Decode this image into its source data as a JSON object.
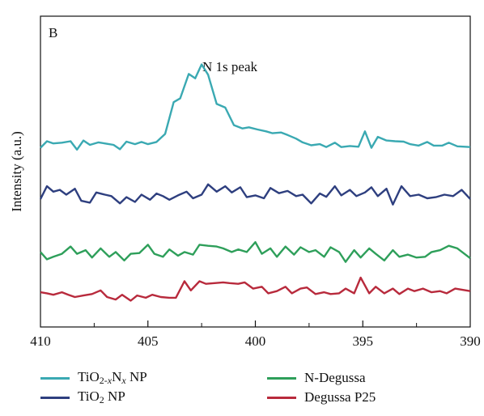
{
  "chart_data": {
    "type": "line",
    "panel_label": "B",
    "annotation": "N 1s peak",
    "xlabel": "",
    "ylabel": "Intensity (a.u.)",
    "x_reversed": true,
    "xlim": [
      410,
      390
    ],
    "x_ticks": [
      410,
      405,
      400,
      395,
      390
    ],
    "y_tick_labels": false,
    "grid": false,
    "legend_position": "bottom",
    "series": [
      {
        "name": "TiO2-xNx NP",
        "color": "#3aa9b2",
        "points": [
          [
            410,
            4.9
          ],
          [
            409.7,
            5.08
          ],
          [
            409.4,
            5.02
          ],
          [
            409.0,
            5.04
          ],
          [
            408.6,
            5.08
          ],
          [
            408.3,
            4.85
          ],
          [
            408.0,
            5.1
          ],
          [
            407.7,
            4.98
          ],
          [
            407.3,
            5.05
          ],
          [
            406.9,
            5.01
          ],
          [
            406.6,
            4.98
          ],
          [
            406.3,
            4.86
          ],
          [
            406.0,
            5.07
          ],
          [
            405.6,
            5.0
          ],
          [
            405.3,
            5.06
          ],
          [
            405.0,
            5.0
          ],
          [
            404.6,
            5.06
          ],
          [
            404.2,
            5.28
          ],
          [
            403.8,
            6.15
          ],
          [
            403.5,
            6.25
          ],
          [
            403.1,
            6.92
          ],
          [
            402.8,
            6.8
          ],
          [
            402.5,
            7.18
          ],
          [
            402.2,
            6.9
          ],
          [
            401.8,
            6.1
          ],
          [
            401.4,
            6.0
          ],
          [
            401.0,
            5.52
          ],
          [
            400.6,
            5.43
          ],
          [
            400.3,
            5.46
          ],
          [
            399.9,
            5.4
          ],
          [
            399.5,
            5.35
          ],
          [
            399.2,
            5.3
          ],
          [
            398.8,
            5.32
          ],
          [
            398.5,
            5.25
          ],
          [
            398.1,
            5.15
          ],
          [
            397.8,
            5.05
          ],
          [
            397.4,
            4.97
          ],
          [
            397.0,
            5.0
          ],
          [
            396.7,
            4.92
          ],
          [
            396.3,
            5.04
          ],
          [
            396.0,
            4.92
          ],
          [
            395.6,
            4.95
          ],
          [
            395.2,
            4.93
          ],
          [
            394.9,
            5.35
          ],
          [
            394.6,
            4.9
          ],
          [
            394.3,
            5.2
          ],
          [
            393.9,
            5.1
          ],
          [
            393.5,
            5.08
          ],
          [
            393.1,
            5.07
          ],
          [
            392.8,
            5.0
          ],
          [
            392.4,
            4.96
          ],
          [
            392.0,
            5.06
          ],
          [
            391.7,
            4.96
          ],
          [
            391.3,
            4.96
          ],
          [
            391.0,
            5.04
          ],
          [
            390.6,
            4.94
          ],
          [
            390,
            4.92
          ]
        ]
      },
      {
        "name": "TiO2 NP",
        "color": "#2e3f7f",
        "points": [
          [
            410,
            3.5
          ],
          [
            409.7,
            3.85
          ],
          [
            409.4,
            3.7
          ],
          [
            409.1,
            3.75
          ],
          [
            408.8,
            3.62
          ],
          [
            408.4,
            3.78
          ],
          [
            408.1,
            3.45
          ],
          [
            407.7,
            3.4
          ],
          [
            407.4,
            3.68
          ],
          [
            407.0,
            3.62
          ],
          [
            406.7,
            3.58
          ],
          [
            406.3,
            3.38
          ],
          [
            406.0,
            3.55
          ],
          [
            405.6,
            3.42
          ],
          [
            405.3,
            3.62
          ],
          [
            404.9,
            3.48
          ],
          [
            404.6,
            3.65
          ],
          [
            404.3,
            3.58
          ],
          [
            404.0,
            3.48
          ],
          [
            403.6,
            3.6
          ],
          [
            403.2,
            3.7
          ],
          [
            402.9,
            3.52
          ],
          [
            402.5,
            3.62
          ],
          [
            402.2,
            3.9
          ],
          [
            401.8,
            3.7
          ],
          [
            401.4,
            3.85
          ],
          [
            401.1,
            3.68
          ],
          [
            400.7,
            3.82
          ],
          [
            400.4,
            3.55
          ],
          [
            400.0,
            3.6
          ],
          [
            399.6,
            3.52
          ],
          [
            399.3,
            3.8
          ],
          [
            398.9,
            3.66
          ],
          [
            398.5,
            3.72
          ],
          [
            398.1,
            3.58
          ],
          [
            397.8,
            3.62
          ],
          [
            397.4,
            3.38
          ],
          [
            397.0,
            3.65
          ],
          [
            396.7,
            3.56
          ],
          [
            396.3,
            3.85
          ],
          [
            396.0,
            3.6
          ],
          [
            395.6,
            3.75
          ],
          [
            395.3,
            3.58
          ],
          [
            394.9,
            3.68
          ],
          [
            394.6,
            3.82
          ],
          [
            394.3,
            3.58
          ],
          [
            393.9,
            3.78
          ],
          [
            393.6,
            3.35
          ],
          [
            393.2,
            3.85
          ],
          [
            392.8,
            3.58
          ],
          [
            392.4,
            3.62
          ],
          [
            392.0,
            3.52
          ],
          [
            391.6,
            3.55
          ],
          [
            391.2,
            3.62
          ],
          [
            390.8,
            3.58
          ],
          [
            390.4,
            3.75
          ],
          [
            390,
            3.5
          ]
        ]
      },
      {
        "name": "N-Degussa",
        "color": "#2e9f5a",
        "points": [
          [
            410,
            2.05
          ],
          [
            409.7,
            1.85
          ],
          [
            409.4,
            1.92
          ],
          [
            409.0,
            2.0
          ],
          [
            408.6,
            2.2
          ],
          [
            408.3,
            2.0
          ],
          [
            407.9,
            2.1
          ],
          [
            407.6,
            1.9
          ],
          [
            407.2,
            2.15
          ],
          [
            406.8,
            1.92
          ],
          [
            406.5,
            2.05
          ],
          [
            406.1,
            1.82
          ],
          [
            405.8,
            2.0
          ],
          [
            405.4,
            2.02
          ],
          [
            405.0,
            2.25
          ],
          [
            404.7,
            2.0
          ],
          [
            404.3,
            1.92
          ],
          [
            404.0,
            2.12
          ],
          [
            403.6,
            1.95
          ],
          [
            403.3,
            2.05
          ],
          [
            402.9,
            1.98
          ],
          [
            402.6,
            2.25
          ],
          [
            402.2,
            2.22
          ],
          [
            401.8,
            2.2
          ],
          [
            401.5,
            2.15
          ],
          [
            401.1,
            2.05
          ],
          [
            400.8,
            2.12
          ],
          [
            400.4,
            2.05
          ],
          [
            400.0,
            2.32
          ],
          [
            399.7,
            2.0
          ],
          [
            399.3,
            2.15
          ],
          [
            399.0,
            1.92
          ],
          [
            398.6,
            2.2
          ],
          [
            398.2,
            1.98
          ],
          [
            397.9,
            2.18
          ],
          [
            397.5,
            2.05
          ],
          [
            397.2,
            2.1
          ],
          [
            396.8,
            1.92
          ],
          [
            396.5,
            2.18
          ],
          [
            396.1,
            2.05
          ],
          [
            395.8,
            1.78
          ],
          [
            395.4,
            2.1
          ],
          [
            395.1,
            1.9
          ],
          [
            394.7,
            2.15
          ],
          [
            394.4,
            2.0
          ],
          [
            394.0,
            1.82
          ],
          [
            393.6,
            2.1
          ],
          [
            393.3,
            1.92
          ],
          [
            392.9,
            1.98
          ],
          [
            392.5,
            1.9
          ],
          [
            392.1,
            1.92
          ],
          [
            391.8,
            2.05
          ],
          [
            391.4,
            2.1
          ],
          [
            391.0,
            2.22
          ],
          [
            390.6,
            2.15
          ],
          [
            390,
            1.88
          ]
        ]
      },
      {
        "name": "Degussa P25",
        "color": "#b82a3c",
        "points": [
          [
            410,
            0.95
          ],
          [
            409.7,
            0.92
          ],
          [
            409.4,
            0.88
          ],
          [
            409.0,
            0.95
          ],
          [
            408.7,
            0.88
          ],
          [
            408.4,
            0.82
          ],
          [
            408.0,
            0.86
          ],
          [
            407.6,
            0.9
          ],
          [
            407.2,
            1.0
          ],
          [
            406.9,
            0.82
          ],
          [
            406.5,
            0.75
          ],
          [
            406.2,
            0.88
          ],
          [
            405.8,
            0.72
          ],
          [
            405.5,
            0.86
          ],
          [
            405.1,
            0.8
          ],
          [
            404.8,
            0.88
          ],
          [
            404.4,
            0.82
          ],
          [
            404.0,
            0.8
          ],
          [
            403.7,
            0.8
          ],
          [
            403.3,
            1.25
          ],
          [
            403.0,
            1.0
          ],
          [
            402.6,
            1.25
          ],
          [
            402.3,
            1.18
          ],
          [
            401.9,
            1.2
          ],
          [
            401.5,
            1.22
          ],
          [
            401.2,
            1.2
          ],
          [
            400.8,
            1.18
          ],
          [
            400.5,
            1.22
          ],
          [
            400.1,
            1.05
          ],
          [
            399.7,
            1.1
          ],
          [
            399.4,
            0.92
          ],
          [
            399.0,
            0.98
          ],
          [
            398.6,
            1.1
          ],
          [
            398.3,
            0.92
          ],
          [
            397.9,
            1.05
          ],
          [
            397.6,
            1.08
          ],
          [
            397.2,
            0.9
          ],
          [
            396.8,
            0.95
          ],
          [
            396.5,
            0.9
          ],
          [
            396.1,
            0.92
          ],
          [
            395.8,
            1.05
          ],
          [
            395.4,
            0.92
          ],
          [
            395.1,
            1.35
          ],
          [
            394.7,
            0.92
          ],
          [
            394.4,
            1.1
          ],
          [
            394.0,
            0.92
          ],
          [
            393.6,
            1.05
          ],
          [
            393.3,
            0.9
          ],
          [
            392.9,
            1.05
          ],
          [
            392.6,
            0.98
          ],
          [
            392.2,
            1.05
          ],
          [
            391.8,
            0.95
          ],
          [
            391.4,
            0.98
          ],
          [
            391.1,
            0.92
          ],
          [
            390.7,
            1.05
          ],
          [
            390,
            0.98
          ]
        ]
      }
    ],
    "legend": [
      {
        "series": 0,
        "parts": [
          {
            "t": "TiO"
          },
          {
            "t": "2-",
            "sub": true
          },
          {
            "t": "x",
            "sub": true,
            "it": true
          },
          {
            "t": "N"
          },
          {
            "t": "x",
            "sub": true,
            "it": true
          },
          {
            "t": " NP"
          }
        ]
      },
      {
        "series": 2,
        "parts": [
          {
            "t": "N-Degussa"
          }
        ]
      },
      {
        "series": 1,
        "parts": [
          {
            "t": "TiO"
          },
          {
            "t": "2",
            "sub": true
          },
          {
            "t": " NP"
          }
        ]
      },
      {
        "series": 3,
        "parts": [
          {
            "t": "Degussa P25"
          }
        ]
      }
    ]
  }
}
